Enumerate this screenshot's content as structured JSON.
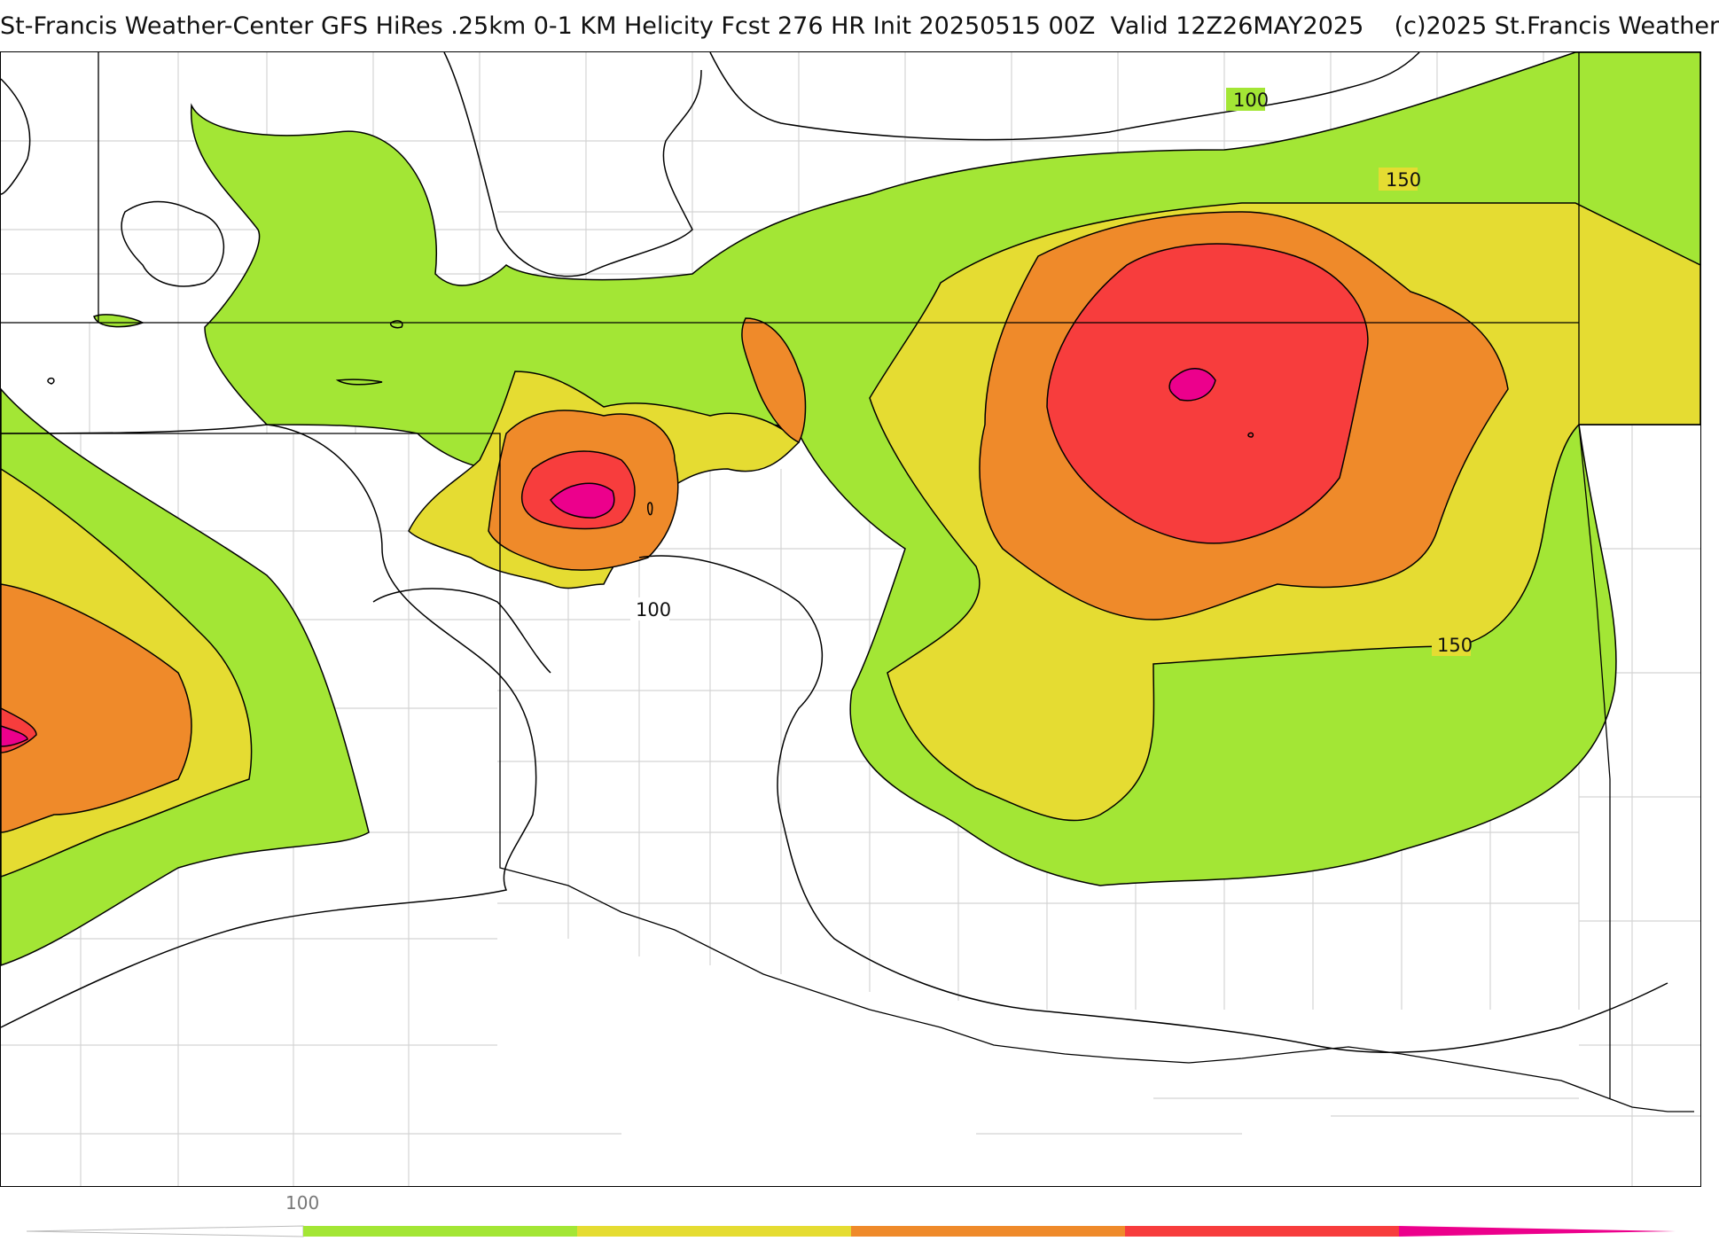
{
  "header": {
    "title": "St-Francis Weather-Center GFS HiRes .25km 0-1 KM Helicity Fcst 276 HR Init 20250515 00Z  Valid 12Z26MAY2025    (c)2025 St.Francis Weather"
  },
  "map": {
    "contour_labels": [
      "100",
      "150",
      "100",
      "150"
    ]
  },
  "legend": {
    "tick_label": "100",
    "colors": {
      "band_100": "#a3e635",
      "band_150": "#e5dc32",
      "band_200": "#ef8a2a",
      "band_250": "#f73d3d",
      "band_300": "#ec008c"
    }
  }
}
